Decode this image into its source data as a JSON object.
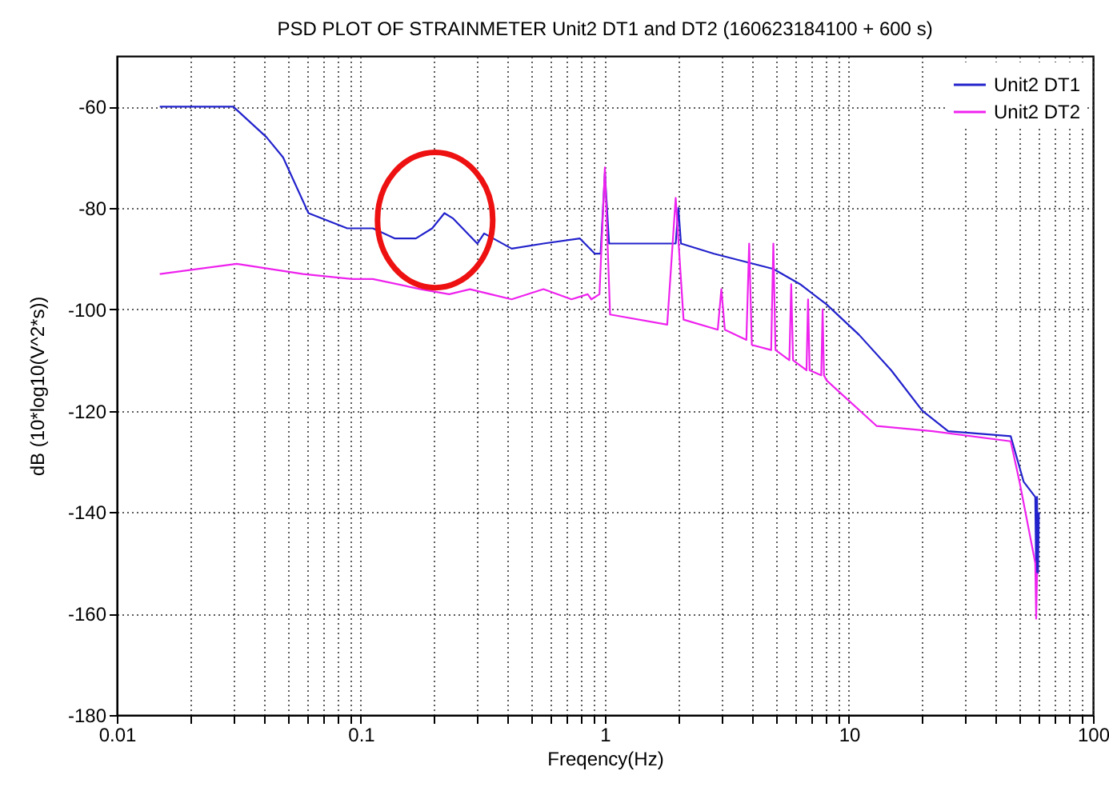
{
  "chart_data": {
    "type": "line",
    "title": "PSD PLOT OF STRAINMETER Unit2 DT1 and DT2 (160623184100 + 600 s)",
    "xlabel": "Freqency(Hz)",
    "ylabel": "dB (10*log10(V^2*s))",
    "log": "x",
    "grid": true,
    "legend": "top right",
    "line_style": "solid",
    "marker": "none",
    "xlim": [
      0.01,
      100
    ],
    "ylim": [
      -180,
      -50
    ],
    "xticks": [
      0.01,
      {
        "value": 0.02,
        "label": null
      },
      {
        "value": 0.03,
        "label": null
      },
      {
        "value": 0.04,
        "label": null
      },
      {
        "value": 0.05,
        "label": null
      },
      {
        "value": 0.06,
        "label": null
      },
      {
        "value": 0.07,
        "label": null
      },
      {
        "value": 0.08,
        "label": null
      },
      {
        "value": 0.09,
        "label": null
      },
      0.1,
      {
        "value": 0.2,
        "label": null
      },
      {
        "value": 0.3,
        "label": null
      },
      {
        "value": 0.4,
        "label": null
      },
      {
        "value": 0.5,
        "label": null
      },
      {
        "value": 0.6,
        "label": null
      },
      {
        "value": 0.7,
        "label": null
      },
      {
        "value": 0.8,
        "label": null
      },
      {
        "value": 0.9,
        "label": null
      },
      1,
      {
        "value": 2,
        "label": null
      },
      {
        "value": 3,
        "label": null
      },
      {
        "value": 4,
        "label": null
      },
      {
        "value": 5,
        "label": null
      },
      {
        "value": 6,
        "label": null
      },
      {
        "value": 7,
        "label": null
      },
      {
        "value": 8,
        "label": null
      },
      {
        "value": 9,
        "label": null
      },
      10,
      {
        "value": 20,
        "label": null
      },
      {
        "value": 30,
        "label": null
      },
      {
        "value": 40,
        "label": null
      },
      {
        "value": 50,
        "label": null
      },
      {
        "value": 60,
        "label": null
      },
      {
        "value": 70,
        "label": null
      },
      {
        "value": 80,
        "label": null
      },
      {
        "value": 90,
        "label": null
      },
      100
    ],
    "yticks": [
      -180,
      -160,
      -140,
      -120,
      -100,
      -80,
      -60
    ],
    "series": [
      {
        "name": "Unit2 DT1",
        "color": "#2222cc",
        "x": [
          0.015,
          0.03,
          0.041,
          0.048,
          0.061,
          0.088,
          0.112,
          0.138,
          0.168,
          0.196,
          0.22,
          0.238,
          0.3,
          0.32,
          0.415,
          0.56,
          0.79,
          0.91,
          0.96,
          1.0,
          1.04,
          1.5,
          1.95,
          2.0,
          2.05,
          2.8,
          4.9,
          6.3,
          8.1,
          11,
          14.9,
          20,
          25.5,
          46,
          52,
          58,
          58.5,
          59,
          59.5,
          60
        ],
        "values": [
          -60,
          -60,
          -66,
          -70,
          -81,
          -84,
          -84,
          -86,
          -86,
          -84,
          -81,
          -82,
          -87,
          -85,
          -88,
          -87,
          -86,
          -89,
          -89,
          -73,
          -87,
          -87,
          -87,
          -80,
          -87,
          -89,
          -92,
          -95,
          -99,
          -105,
          -112,
          -120,
          -124,
          -125,
          -134,
          -137,
          -152,
          -137,
          -152,
          -140
        ]
      },
      {
        "name": "Unit2 DT2",
        "color": "#ee22ee",
        "x": [
          0.015,
          0.031,
          0.058,
          0.092,
          0.112,
          0.176,
          0.23,
          0.28,
          0.34,
          0.415,
          0.56,
          0.73,
          0.85,
          0.88,
          0.95,
          1.0,
          1.05,
          1.8,
          1.95,
          2.1,
          2.9,
          3.0,
          3.1,
          3.8,
          3.9,
          4.0,
          4.8,
          4.9,
          5.0,
          5.7,
          5.8,
          5.9,
          6.7,
          6.8,
          6.9,
          7.7,
          7.8,
          7.9,
          8.1,
          13,
          22,
          46,
          50,
          58,
          58.5,
          59
        ],
        "values": [
          -93,
          -91,
          -93,
          -94,
          -94,
          -96,
          -97,
          -96,
          -97,
          -98,
          -96,
          -98,
          -97,
          -98,
          -97,
          -72,
          -101,
          -103,
          -78,
          -102,
          -104,
          -96,
          -104,
          -106,
          -87,
          -107,
          -108,
          -87,
          -108,
          -110,
          -95,
          -110,
          -112,
          -98,
          -112,
          -113,
          -100,
          -113,
          -114,
          -123,
          -124,
          -126,
          -134,
          -150,
          -161,
          -152
        ]
      }
    ]
  }
}
